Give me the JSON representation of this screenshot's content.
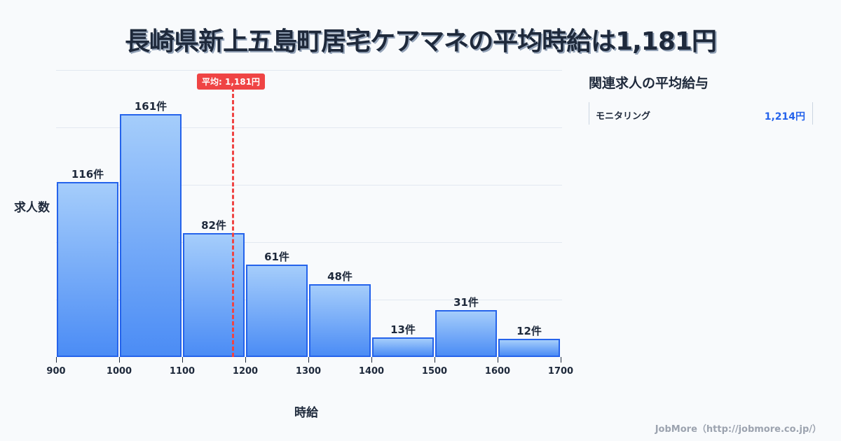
{
  "title": "長崎県新上五島町居宅ケアマネの平均時給は1,181円",
  "chart_data": {
    "type": "bar",
    "title": "長崎県新上五島町居宅ケアマネの平均時給は1,181円",
    "xlabel": "時給",
    "ylabel": "求人数",
    "x_ticks": [
      "900",
      "1000",
      "1100",
      "1200",
      "1300",
      "1400",
      "1500",
      "1600",
      "1700"
    ],
    "categories": [
      "900-1000",
      "1000-1100",
      "1100-1200",
      "1200-1300",
      "1300-1400",
      "1400-1500",
      "1500-1600",
      "1600-1700"
    ],
    "values": [
      116,
      161,
      82,
      61,
      48,
      13,
      31,
      12
    ],
    "labels": [
      "116件",
      "161件",
      "82件",
      "61件",
      "48件",
      "13件",
      "31件",
      "12件"
    ],
    "xlim": [
      900,
      1700
    ],
    "ylim": [
      0,
      190
    ],
    "grid": true,
    "average": {
      "value": 1181,
      "label": "平均: 1,181円",
      "color": "#ef4444"
    },
    "bar_color": "#4b8cf5",
    "bar_border": "#2563eb"
  },
  "sidebar": {
    "title": "関連求人の平均給与",
    "items": [
      {
        "label": "モニタリング",
        "value": "1,214円"
      }
    ]
  },
  "footer": "JobMore（http://jobmore.co.jp/）"
}
